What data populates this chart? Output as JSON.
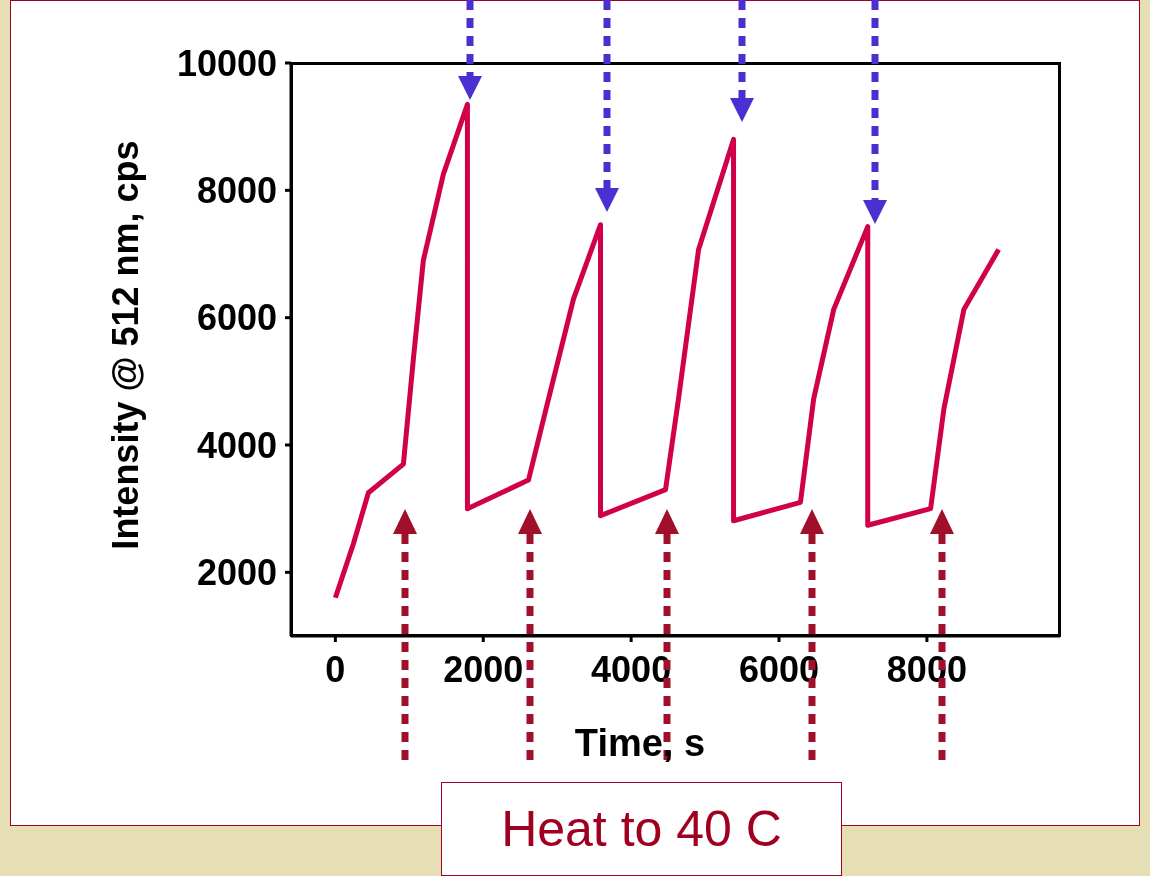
{
  "chart_data": {
    "type": "line",
    "xlabel": "Time, s",
    "ylabel": "Intensity @ 512 nm, cps",
    "annotations": [
      "Heat to 40 C"
    ],
    "xlim": [
      -600,
      9800
    ],
    "xticks": [
      0,
      2000,
      4000,
      6000,
      8000
    ],
    "ylim": [
      1000,
      10000
    ],
    "yticks": [
      2000,
      4000,
      6000,
      8000,
      10000
    ],
    "grid": false,
    "marker": "none",
    "line_style": "solid",
    "series": [
      {
        "color": "#d0004a",
        "x": [
          0,
          244,
          447,
          920,
          1055,
          1190,
          1460,
          1786,
          1786,
          2612,
          2882,
          3220,
          3586,
          3586,
          4465,
          4640,
          4912,
          5385,
          5385,
          6290,
          6468,
          6740,
          7200,
          7200,
          8050,
          8230,
          8500,
          8970
        ],
        "values": [
          1600,
          2450,
          3250,
          3700,
          5350,
          6900,
          8250,
          9350,
          3000,
          3450,
          4720,
          6290,
          7460,
          2890,
          3300,
          4720,
          7070,
          8800,
          2810,
          3100,
          4720,
          6130,
          7430,
          2740,
          3000,
          4570,
          6130,
          7070
        ]
      }
    ]
  }
}
